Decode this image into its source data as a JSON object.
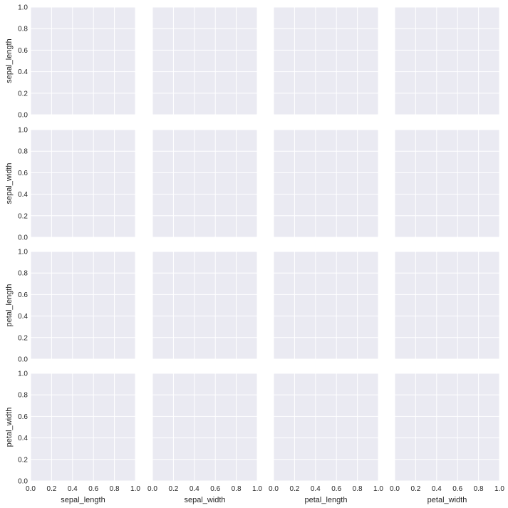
{
  "chart_data": {
    "type": "scatter",
    "layout": "pair-grid",
    "rows": 4,
    "cols": 4,
    "variables": [
      "sepal_length",
      "sepal_width",
      "petal_length",
      "petal_width"
    ],
    "xlim": [
      0.0,
      1.0
    ],
    "ylim": [
      0.0,
      1.0
    ],
    "tick_values": [
      0.0,
      0.2,
      0.4,
      0.6,
      0.8,
      1.0
    ],
    "tick_labels": [
      "0.0",
      "0.2",
      "0.4",
      "0.6",
      "0.8",
      "1.0"
    ],
    "grid": true,
    "series": [],
    "colors": {
      "panel_background": "#eaeaf2",
      "grid": "#ffffff",
      "text": "#262626"
    }
  }
}
